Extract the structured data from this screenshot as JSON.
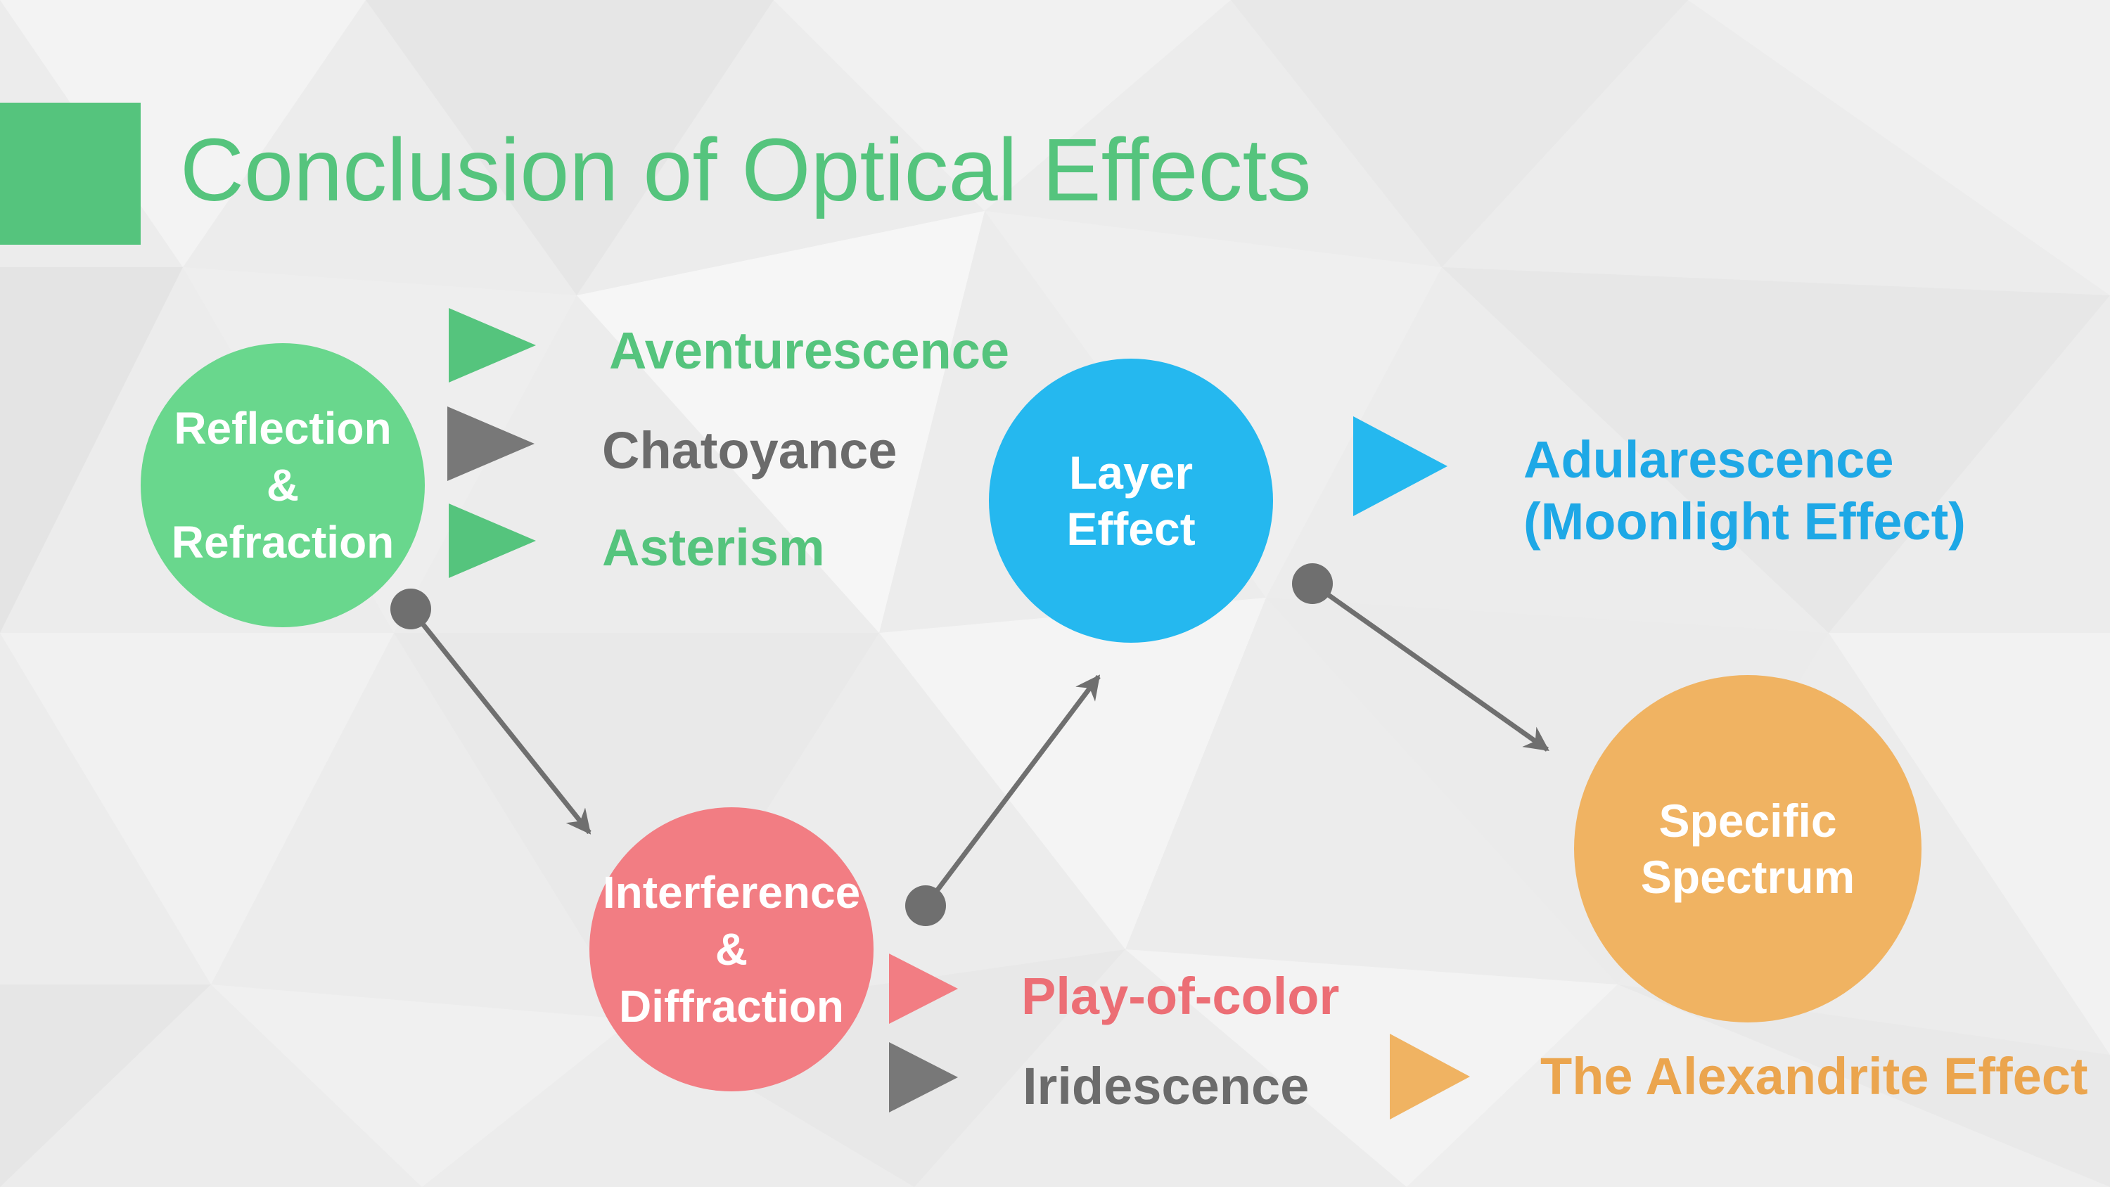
{
  "title": "Conclusion of Optical Effects",
  "colors": {
    "green": "#55c47d",
    "light_green": "#69d78d",
    "gray": "#787878",
    "pink": "#f27d83",
    "blue": "#25b8ef",
    "orange": "#f0b362",
    "background": "#ededed"
  },
  "nodes": {
    "reflection": "Reflection\n&\nRefraction",
    "interference": "Interference\n&\nDiffraction",
    "layer": "Layer\nEffect",
    "spectrum": "Specific\nSpectrum"
  },
  "effects": {
    "aventurescence": "Aventurescence",
    "chatoyance": "Chatoyance",
    "asterism": "Asterism",
    "adularescence": "Adularescence\n(Moonlight Effect)",
    "play_of_color": "Play-of-color",
    "iridescence": "Iridescence",
    "alexandrite": "The Alexandrite Effect"
  },
  "icons": {
    "connector_start": "dot-icon",
    "connector_end": "arrowhead-icon",
    "bullet": "triangle-play-icon"
  }
}
